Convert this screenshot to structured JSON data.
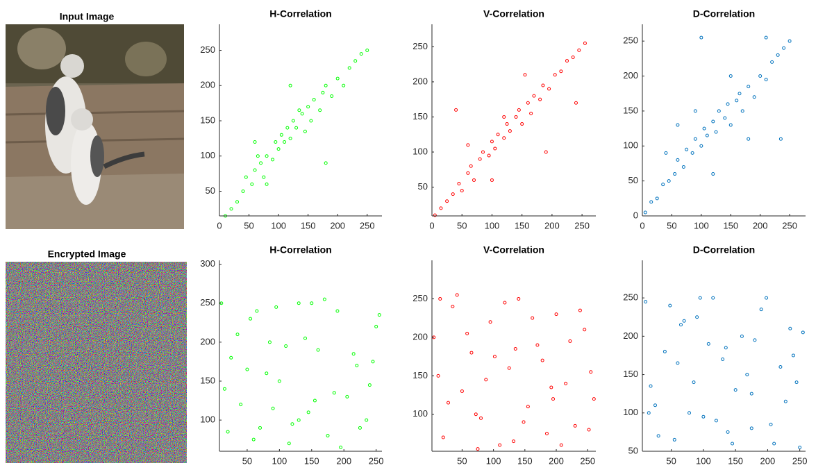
{
  "images": [
    {
      "title": "Input Image"
    },
    {
      "title": "Encrypted Image"
    }
  ],
  "chart_data": [
    {
      "type": "scatter",
      "title": "H-Correlation",
      "color": "#00ff00",
      "x": [
        10,
        20,
        30,
        40,
        45,
        55,
        60,
        70,
        75,
        80,
        90,
        95,
        100,
        105,
        110,
        115,
        120,
        125,
        130,
        140,
        145,
        150,
        155,
        160,
        170,
        175,
        180,
        190,
        200,
        210,
        220,
        230,
        240,
        250,
        60,
        180,
        120,
        80,
        65,
        135
      ],
      "y": [
        15,
        25,
        35,
        50,
        70,
        60,
        80,
        90,
        70,
        100,
        95,
        120,
        110,
        130,
        120,
        140,
        125,
        150,
        140,
        160,
        135,
        170,
        150,
        180,
        165,
        190,
        200,
        185,
        210,
        200,
        225,
        235,
        245,
        250,
        120,
        90,
        200,
        60,
        100,
        165
      ],
      "xlim": [
        0,
        275
      ],
      "ylim": [
        15,
        287
      ],
      "xticks": [
        0,
        50,
        100,
        150,
        200,
        250
      ],
      "yticks": [
        50,
        100,
        150,
        200,
        250
      ]
    },
    {
      "type": "scatter",
      "title": "V-Correlation",
      "color": "#ff0000",
      "x": [
        5,
        15,
        25,
        35,
        45,
        50,
        60,
        65,
        70,
        80,
        85,
        95,
        100,
        105,
        110,
        120,
        125,
        130,
        140,
        145,
        150,
        160,
        165,
        170,
        180,
        185,
        195,
        205,
        215,
        225,
        235,
        245,
        255,
        40,
        60,
        190,
        240,
        100,
        155,
        120
      ],
      "y": [
        10,
        20,
        30,
        40,
        55,
        45,
        70,
        80,
        60,
        90,
        100,
        95,
        115,
        105,
        125,
        120,
        140,
        130,
        150,
        160,
        140,
        170,
        155,
        180,
        175,
        195,
        190,
        210,
        215,
        230,
        235,
        245,
        255,
        160,
        110,
        100,
        170,
        60,
        210,
        150
      ],
      "xlim": [
        0,
        273
      ],
      "ylim": [
        9,
        282
      ],
      "xticks": [
        0,
        50,
        100,
        150,
        200,
        250
      ],
      "yticks": [
        50,
        100,
        150,
        200,
        250
      ]
    },
    {
      "type": "scatter",
      "title": "D-Correlation",
      "color": "#0072bd",
      "x": [
        5,
        15,
        25,
        35,
        45,
        55,
        60,
        70,
        75,
        85,
        90,
        100,
        105,
        110,
        120,
        125,
        130,
        140,
        145,
        150,
        160,
        165,
        170,
        180,
        190,
        200,
        210,
        220,
        230,
        240,
        250,
        100,
        210,
        235,
        120,
        60,
        180,
        150,
        90,
        40
      ],
      "y": [
        5,
        20,
        25,
        45,
        50,
        60,
        80,
        70,
        95,
        90,
        110,
        100,
        125,
        115,
        135,
        120,
        150,
        140,
        160,
        130,
        165,
        175,
        150,
        185,
        170,
        200,
        195,
        220,
        230,
        240,
        250,
        255,
        255,
        110,
        60,
        130,
        110,
        200,
        150,
        90
      ],
      "xlim": [
        0,
        277
      ],
      "ylim": [
        0,
        274
      ],
      "xticks": [
        0,
        50,
        100,
        150,
        200,
        250
      ],
      "yticks": [
        0,
        50,
        100,
        150,
        200,
        250
      ]
    },
    {
      "type": "scatter",
      "title": "H-Correlation",
      "color": "#00ff00",
      "x": [
        10,
        25,
        40,
        55,
        70,
        85,
        100,
        115,
        130,
        145,
        160,
        175,
        190,
        205,
        220,
        235,
        250,
        15,
        35,
        60,
        80,
        95,
        120,
        140,
        155,
        170,
        195,
        215,
        240,
        255,
        20,
        50,
        90,
        110,
        150,
        185,
        225,
        245,
        65,
        130
      ],
      "y": [
        250,
        180,
        120,
        230,
        90,
        200,
        150,
        70,
        250,
        110,
        190,
        80,
        240,
        130,
        170,
        100,
        220,
        140,
        210,
        75,
        160,
        245,
        95,
        205,
        125,
        255,
        65,
        185,
        145,
        235,
        85,
        165,
        115,
        195,
        250,
        135,
        90,
        175,
        240,
        100
      ],
      "xlim": [
        7,
        259
      ],
      "ylim": [
        60,
        305
      ],
      "xticks": [
        50,
        100,
        150,
        200,
        250
      ],
      "yticks": [
        100,
        150,
        200,
        250,
        300
      ]
    },
    {
      "type": "scatter",
      "title": "V-Correlation",
      "color": "#ff0000",
      "x": [
        5,
        20,
        35,
        50,
        65,
        80,
        95,
        110,
        125,
        140,
        155,
        170,
        185,
        200,
        215,
        230,
        245,
        260,
        12,
        42,
        72,
        102,
        132,
        162,
        192,
        222,
        252,
        28,
        58,
        88,
        118,
        148,
        178,
        208,
        238,
        15,
        75,
        135,
        195,
        255
      ],
      "y": [
        200,
        70,
        240,
        130,
        180,
        95,
        220,
        60,
        160,
        250,
        110,
        190,
        75,
        230,
        140,
        85,
        210,
        120,
        150,
        255,
        100,
        175,
        65,
        225,
        135,
        195,
        80,
        115,
        205,
        145,
        245,
        90,
        170,
        60,
        235,
        250,
        55,
        185,
        120,
        155
      ],
      "xlim": [
        2,
        263
      ],
      "ylim": [
        52,
        300
      ],
      "xticks": [
        50,
        100,
        150,
        200,
        250
      ],
      "yticks": [
        100,
        150,
        200,
        250
      ]
    },
    {
      "type": "scatter",
      "title": "D-Correlation",
      "color": "#0072bd",
      "x": [
        10,
        25,
        40,
        55,
        70,
        85,
        100,
        115,
        130,
        145,
        160,
        175,
        190,
        205,
        220,
        235,
        250,
        18,
        48,
        78,
        108,
        138,
        168,
        198,
        228,
        255,
        30,
        60,
        90,
        120,
        150,
        180,
        210,
        240,
        15,
        95,
        175,
        245,
        65,
        135
      ],
      "y": [
        245,
        110,
        180,
        65,
        220,
        140,
        95,
        250,
        170,
        60,
        200,
        125,
        235,
        85,
        160,
        210,
        55,
        135,
        240,
        100,
        190,
        75,
        150,
        250,
        115,
        205,
        70,
        165,
        225,
        90,
        130,
        195,
        60,
        175,
        100,
        250,
        80,
        140,
        215,
        185
      ],
      "xlim": [
        5,
        259
      ],
      "ylim": [
        50,
        299
      ],
      "xticks": [
        50,
        100,
        150,
        200,
        250
      ],
      "yticks": [
        50,
        100,
        150,
        200,
        250
      ]
    }
  ]
}
